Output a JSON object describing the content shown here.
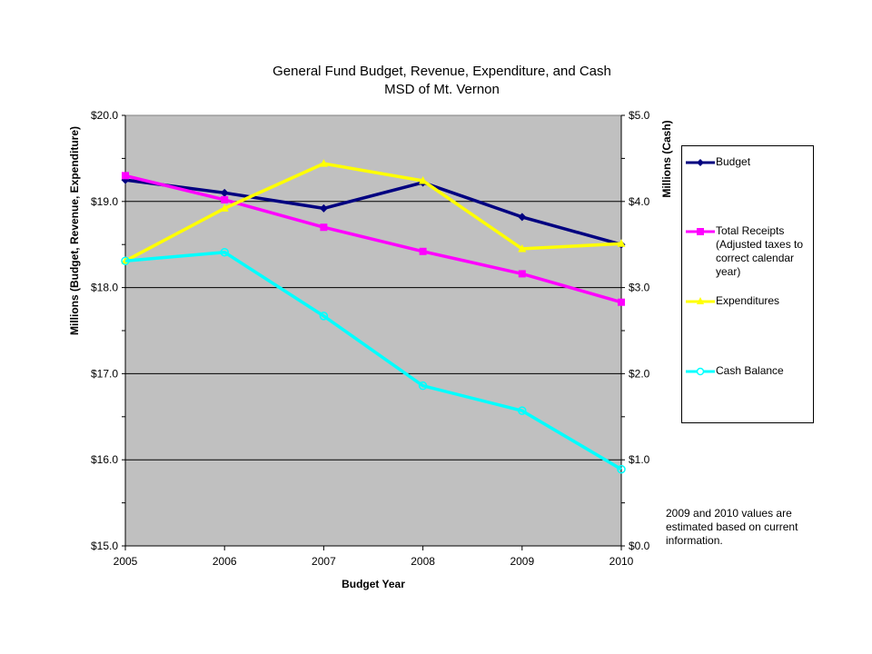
{
  "chart_data": {
    "type": "line",
    "title_line1": "General Fund Budget, Revenue, Expenditure, and Cash",
    "title_line2": "MSD of Mt. Vernon",
    "xlabel": "Budget Year",
    "ylabel_left": "Millions (Budget, Revenue, Expenditure)",
    "ylabel_right": "Millions (Cash)",
    "categories": [
      "2005",
      "2006",
      "2007",
      "2008",
      "2009",
      "2010"
    ],
    "ylim_left": [
      15.0,
      20.0
    ],
    "ylim_right": [
      0.0,
      5.0
    ],
    "yticks_left": [
      "$15.0",
      "$16.0",
      "$17.0",
      "$18.0",
      "$19.0",
      "$20.0"
    ],
    "yticks_right": [
      "$0.0",
      "$1.0",
      "$2.0",
      "$3.0",
      "$4.0",
      "$5.0"
    ],
    "grid": true,
    "plot_background": "#c0c0c0",
    "legend_position": "right",
    "series": [
      {
        "name": "Budget",
        "axis": "left",
        "color": "#000080",
        "marker": "diamond",
        "values": [
          19.25,
          19.1,
          18.92,
          19.22,
          18.82,
          18.5
        ]
      },
      {
        "name": "Total Receipts (Adjusted taxes to correct calendar year)",
        "axis": "left",
        "color": "#ff00ff",
        "marker": "square",
        "values": [
          19.3,
          19.02,
          18.7,
          18.42,
          18.16,
          17.83
        ]
      },
      {
        "name": "Expenditures",
        "axis": "left",
        "color": "#ffff00",
        "marker": "triangle",
        "values": [
          18.31,
          18.92,
          19.44,
          19.24,
          18.45,
          18.51
        ]
      },
      {
        "name": "Cash Balance",
        "axis": "right",
        "color": "#00ffff",
        "marker": "circle",
        "values": [
          3.31,
          3.41,
          2.67,
          1.86,
          1.57,
          0.89
        ]
      }
    ],
    "legend_lines": [
      [
        "Budget"
      ],
      [
        "Total Receipts",
        "(Adjusted taxes to",
        "correct calendar",
        "year)"
      ],
      [
        "Expenditures"
      ],
      [
        "Cash Balance"
      ]
    ],
    "note": "2009 and 2010 values are estimated based on current information."
  }
}
